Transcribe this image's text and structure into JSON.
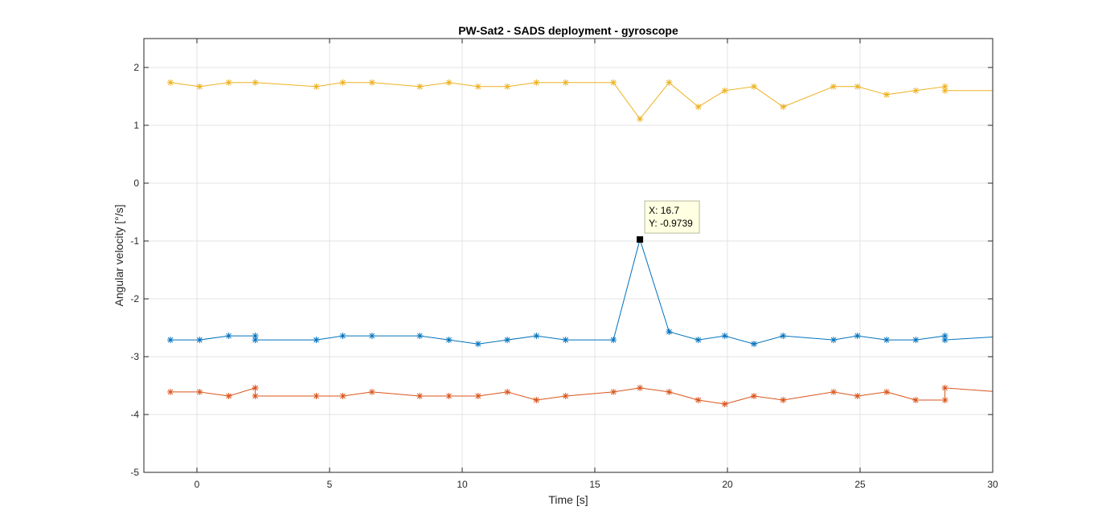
{
  "chart_data": {
    "type": "line",
    "title": "PW-Sat2 - SADS deployment - gyroscope",
    "xlabel": "Time [s]",
    "ylabel": "Angular velocity [°/s]",
    "xlim": [
      -2,
      30
    ],
    "ylim": [
      -5,
      2.5
    ],
    "x_ticks": [
      0,
      5,
      10,
      15,
      20,
      25,
      30
    ],
    "y_ticks": [
      -5,
      -4,
      -3,
      -2,
      -1,
      0,
      1,
      2
    ],
    "x_tick_labels": [
      "0",
      "5",
      "10",
      "15",
      "20",
      "25",
      "30"
    ],
    "y_tick_labels": [
      "-5",
      "-4",
      "-3",
      "-2",
      "-1",
      "0",
      "1",
      "2"
    ],
    "grid": true,
    "marker": "asterisk",
    "series": [
      {
        "color": "#0072BD",
        "x": [
          -1.0,
          0.1,
          1.2,
          2.2,
          2.2,
          4.5,
          5.5,
          6.6,
          8.4,
          9.5,
          10.6,
          11.7,
          12.8,
          13.9,
          15.7,
          16.7,
          17.8,
          18.9,
          19.9,
          21.0,
          22.1,
          24.0,
          24.9,
          26.0,
          27.1,
          28.2,
          28.2,
          30.0
        ],
        "y": [
          -2.71,
          -2.71,
          -2.64,
          -2.64,
          -2.71,
          -2.71,
          -2.64,
          -2.64,
          -2.64,
          -2.71,
          -2.78,
          -2.71,
          -2.64,
          -2.71,
          -2.71,
          -0.9739,
          -2.57,
          -2.71,
          -2.64,
          -2.78,
          -2.64,
          -2.71,
          -2.64,
          -2.71,
          -2.71,
          -2.64,
          -2.71,
          -2.66
        ],
        "markers": [
          1,
          1,
          1,
          1,
          1,
          1,
          1,
          1,
          1,
          1,
          1,
          1,
          1,
          1,
          1,
          0,
          1,
          1,
          1,
          1,
          1,
          1,
          1,
          1,
          1,
          1,
          1,
          0
        ]
      },
      {
        "color": "#D95319",
        "x": [
          -1.0,
          0.1,
          1.2,
          2.2,
          2.2,
          4.5,
          5.5,
          6.6,
          8.4,
          9.5,
          10.6,
          11.7,
          12.8,
          13.9,
          15.7,
          16.7,
          17.8,
          18.9,
          19.9,
          21.0,
          22.1,
          24.0,
          24.9,
          26.0,
          27.1,
          28.2,
          28.2,
          30.0
        ],
        "y": [
          -3.61,
          -3.61,
          -3.68,
          -3.54,
          -3.68,
          -3.68,
          -3.68,
          -3.61,
          -3.68,
          -3.68,
          -3.68,
          -3.61,
          -3.75,
          -3.68,
          -3.61,
          -3.54,
          -3.61,
          -3.75,
          -3.82,
          -3.68,
          -3.75,
          -3.61,
          -3.68,
          -3.61,
          -3.75,
          -3.75,
          -3.54,
          -3.6
        ],
        "markers": [
          1,
          1,
          1,
          1,
          1,
          1,
          1,
          1,
          1,
          1,
          1,
          1,
          1,
          1,
          1,
          1,
          1,
          1,
          1,
          1,
          1,
          1,
          1,
          1,
          1,
          1,
          1,
          0
        ]
      },
      {
        "color": "#EDB120",
        "x": [
          -1.0,
          0.1,
          1.2,
          2.2,
          4.5,
          5.5,
          6.6,
          8.4,
          9.5,
          10.6,
          11.7,
          12.8,
          13.9,
          15.7,
          16.7,
          17.8,
          18.9,
          19.9,
          21.0,
          22.1,
          24.0,
          24.9,
          26.0,
          27.1,
          28.2,
          28.2,
          30.0
        ],
        "y": [
          1.74,
          1.67,
          1.74,
          1.74,
          1.67,
          1.74,
          1.74,
          1.67,
          1.74,
          1.67,
          1.67,
          1.74,
          1.74,
          1.74,
          1.11,
          1.74,
          1.32,
          1.6,
          1.67,
          1.32,
          1.67,
          1.67,
          1.53,
          1.6,
          1.67,
          1.6,
          1.6
        ],
        "markers": [
          1,
          1,
          1,
          1,
          1,
          1,
          1,
          1,
          1,
          1,
          1,
          1,
          1,
          1,
          1,
          1,
          1,
          1,
          1,
          1,
          1,
          1,
          1,
          1,
          1,
          1,
          0
        ]
      }
    ],
    "datatip": {
      "x": 16.7,
      "y": -0.9739,
      "x_text": "X: 16.7",
      "y_text": "Y: -0.9739"
    }
  }
}
